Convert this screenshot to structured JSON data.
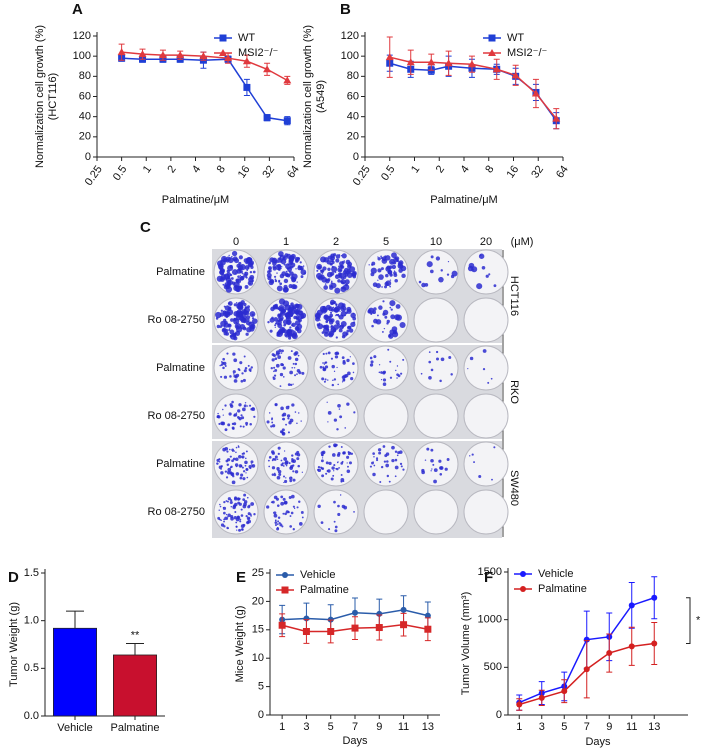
{
  "chart_data": [
    {
      "type": "line",
      "panel": "A",
      "ylabel": [
        "Normalization cell growth (%)",
        "(HCT116)"
      ],
      "xlabel": "Palmatine/μM",
      "xlog": true,
      "xlim": [
        0.25,
        64
      ],
      "xticks": [
        0.25,
        0.5,
        1,
        2,
        4,
        8,
        16,
        32,
        64
      ],
      "ylim": [
        0,
        120
      ],
      "yticks": [
        0,
        20,
        40,
        60,
        80,
        100,
        120
      ],
      "legend": "upper right",
      "x": [
        0.5,
        0.9,
        1.6,
        2.6,
        5,
        10,
        17,
        30,
        53
      ],
      "series": [
        {
          "name": "WT",
          "color": "#1f3fd6",
          "marker": "square",
          "values": [
            98,
            97,
            97,
            97,
            96,
            97,
            69,
            39,
            36
          ],
          "errors": [
            3,
            3,
            3,
            3,
            8,
            3,
            8,
            3,
            4
          ]
        },
        {
          "name": "MSI2⁻/⁻",
          "color": "#e0393e",
          "marker": "triangle",
          "values": [
            104,
            102,
            101,
            101,
            100,
            98,
            95,
            87,
            76
          ],
          "errors": [
            8,
            5,
            5,
            4,
            4,
            5,
            6,
            6,
            4
          ]
        }
      ]
    },
    {
      "type": "line",
      "panel": "B",
      "ylabel": [
        "Normalization cell growth (%)",
        "(A549)"
      ],
      "xlabel": "Palmatine/μM",
      "xlog": true,
      "xlim": [
        0.25,
        64
      ],
      "xticks": [
        0.25,
        0.5,
        1,
        2,
        4,
        8,
        16,
        32,
        64
      ],
      "ylim": [
        0,
        120
      ],
      "yticks": [
        0,
        20,
        40,
        60,
        80,
        100,
        120
      ],
      "legend": "upper right",
      "x": [
        0.5,
        0.9,
        1.6,
        2.6,
        5,
        10,
        17,
        30,
        53
      ],
      "series": [
        {
          "name": "WT",
          "color": "#1f3fd6",
          "marker": "square",
          "values": [
            93,
            87,
            86,
            90,
            88,
            87,
            80,
            64,
            36
          ],
          "errors": [
            8,
            8,
            4,
            10,
            9,
            5,
            8,
            8,
            8
          ]
        },
        {
          "name": "MSI2⁻/⁻",
          "color": "#e0393e",
          "marker": "triangle",
          "values": [
            99,
            94,
            94,
            93,
            92,
            87,
            81,
            63,
            38
          ],
          "errors": [
            20,
            12,
            8,
            12,
            8,
            10,
            10,
            14,
            10
          ]
        }
      ]
    },
    {
      "type": "bar",
      "panel": "D",
      "ylabel": [
        "Tumor Weight (g)"
      ],
      "categories": [
        "Vehicle",
        "Palmatine"
      ],
      "values": [
        0.92,
        0.64
      ],
      "errors": [
        0.18,
        0.12
      ],
      "colors": [
        "#0000ff",
        "#c8102e"
      ],
      "annotations": [
        null,
        "**"
      ],
      "ylim": [
        0,
        1.5
      ],
      "yticks": [
        {
          "value": 0,
          "label": "0.0"
        },
        {
          "value": 0.5,
          "label": "0.5"
        },
        {
          "value": 1,
          "label": "1.0"
        },
        {
          "value": 1.5,
          "label": "1.5"
        }
      ]
    },
    {
      "type": "line",
      "panel": "E",
      "ylabel": [
        "Mice Weight (g)"
      ],
      "xlabel": "Days",
      "xlim": [
        0,
        14
      ],
      "xticks": [
        1,
        3,
        5,
        7,
        9,
        11,
        13
      ],
      "ylim": [
        0,
        25
      ],
      "yticks": [
        0,
        5,
        10,
        15,
        20,
        25
      ],
      "legend": "upper left",
      "x": [
        1,
        3,
        5,
        7,
        9,
        11,
        13
      ],
      "series": [
        {
          "name": "Vehicle",
          "color": "#2a5caa",
          "marker": "circle",
          "values": [
            16.8,
            17,
            16.8,
            18,
            17.8,
            18.5,
            17.5
          ],
          "errors": [
            2.5,
            2.7,
            2.6,
            2.6,
            2.6,
            2.5,
            2.4
          ]
        },
        {
          "name": "Palmatine",
          "color": "#d62728",
          "marker": "square",
          "values": [
            15.8,
            14.7,
            14.7,
            15.3,
            15.4,
            15.9,
            15.1
          ],
          "errors": [
            2,
            2.1,
            2,
            2,
            2.2,
            2,
            2
          ]
        }
      ]
    },
    {
      "type": "line",
      "panel": "F",
      "ylabel": [
        "Tumor Volume (mm³)"
      ],
      "xlabel": "Days",
      "annotation": "*",
      "xlim": [
        0,
        16
      ],
      "xticks": [
        1,
        3,
        5,
        7,
        9,
        11,
        13
      ],
      "ylim": [
        0,
        1500
      ],
      "yticks": [
        0,
        500,
        1000,
        1500
      ],
      "legend": "upper left",
      "x": [
        1,
        3,
        5,
        7,
        9,
        11,
        13
      ],
      "series": [
        {
          "name": "Vehicle",
          "color": "#1a1aff",
          "marker": "circle",
          "values": [
            130,
            230,
            300,
            790,
            820,
            1150,
            1230
          ],
          "errors": [
            80,
            120,
            150,
            300,
            250,
            240,
            220
          ]
        },
        {
          "name": "Palmatine",
          "color": "#d42020",
          "marker": "circle",
          "values": [
            110,
            180,
            250,
            480,
            650,
            720,
            750
          ],
          "errors": [
            60,
            80,
            120,
            300,
            200,
            200,
            220
          ]
        }
      ]
    }
  ],
  "colony_assay": {
    "panel": "C",
    "columns": [
      "0",
      "1",
      "2",
      "5",
      "10",
      "20"
    ],
    "unit": "(μM)",
    "rows": [
      "Palmatine",
      "Ro 08-2750",
      "Palmatine",
      "Ro 08-2750",
      "Palmatine",
      "Ro 08-2750"
    ],
    "cell_lines": [
      "HCT116",
      "RKO",
      "SW480"
    ]
  }
}
